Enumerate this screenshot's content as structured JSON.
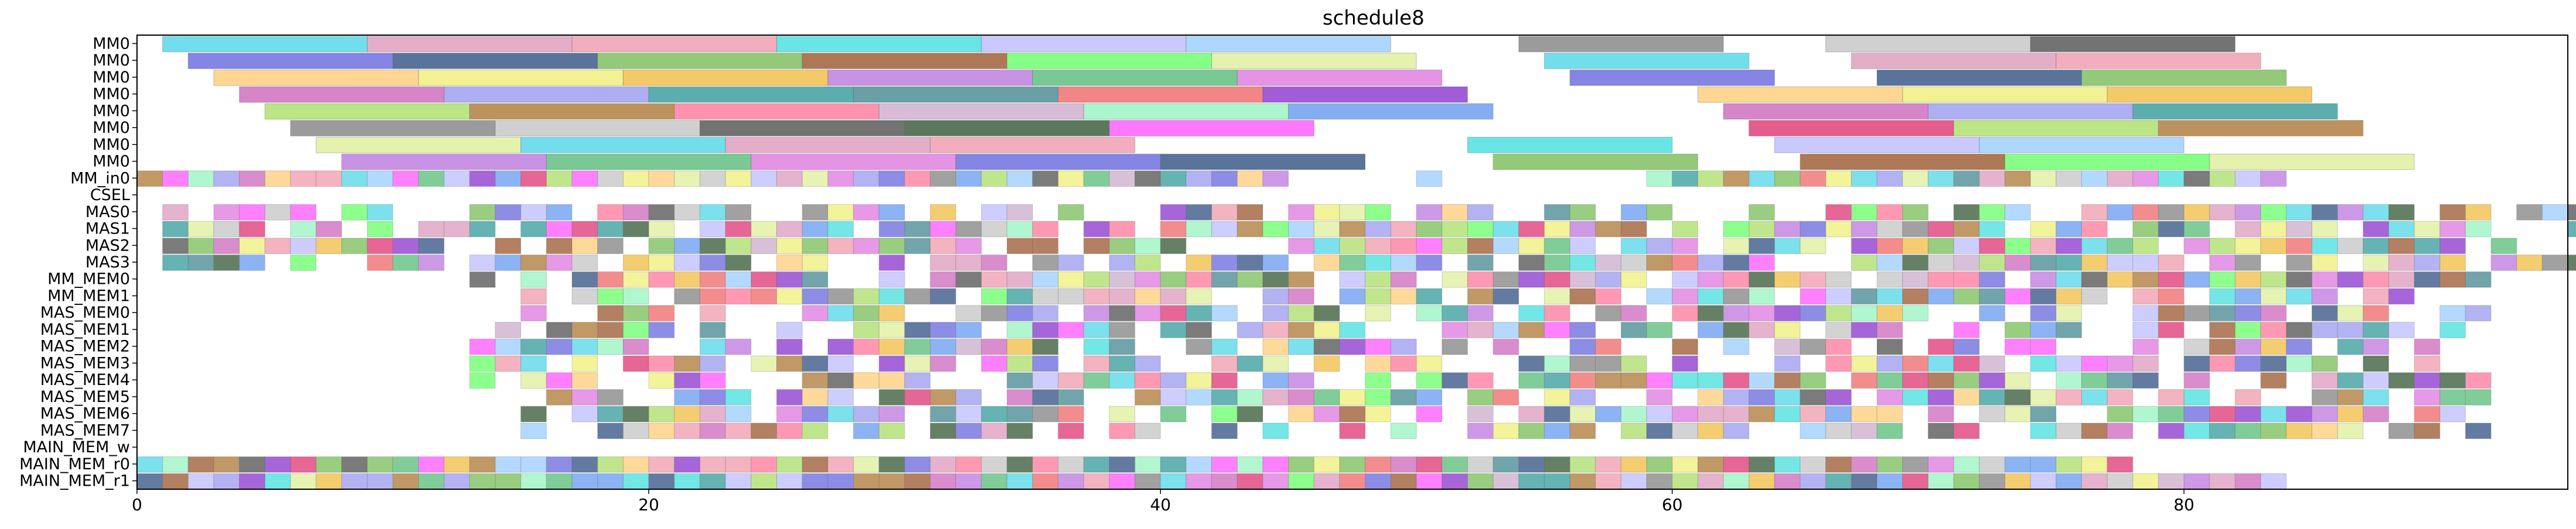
{
  "chart_data": {
    "type": "gantt",
    "title": "schedule8",
    "xlabel": "",
    "ylabel": "",
    "xlim": [
      0,
      95
    ],
    "xticks": [
      0,
      20,
      40,
      60,
      80
    ],
    "grid": false,
    "legend": "none",
    "rows": [
      "MM0",
      "MM0",
      "MM0",
      "MM0",
      "MM0",
      "MM0",
      "MM0",
      "MM0",
      "MM_in0",
      "CSEL",
      "MAS0",
      "MAS1",
      "MAS2",
      "MAS3",
      "MM_MEM0",
      "MM_MEM1",
      "MAS_MEM0",
      "MAS_MEM1",
      "MAS_MEM2",
      "MAS_MEM3",
      "MAS_MEM4",
      "MAS_MEM5",
      "MAS_MEM6",
      "MAS_MEM7",
      "MAIN_MEM_w",
      "MAIN_MEM_r0",
      "MAIN_MEM_r1"
    ],
    "palette": [
      "#5bd8e8",
      "#3d5a8a",
      "#f2c04e",
      "#4d8f96",
      "#9cf5c4",
      "#e0407a",
      "#8a8a8a",
      "#dfa0c0",
      "#80c060",
      "#c080e0",
      "#f07070",
      "#6fa0f0",
      "#b0e070",
      "#c8c8c8",
      "#f0a0b0",
      "#a0603a",
      "#60c080",
      "#9040d0",
      "#d070c0",
      "#b08040",
      "#5a5a5a",
      "#50e0e0",
      "#70ff70",
      "#e080e0",
      "#ffd080",
      "#a0a0f0",
      "#ff80a0",
      "#406040",
      "#c0c0ff",
      "#e0f0a0",
      "#7070e0",
      "#f0f080",
      "#40a0a0",
      "#d0b0d0",
      "#ff60ff",
      "#a0d0ff"
    ],
    "bars": [
      {
        "row": 0,
        "start": 1,
        "end": 9
      },
      {
        "row": 0,
        "start": 9,
        "end": 17
      },
      {
        "row": 0,
        "start": 17,
        "end": 25
      },
      {
        "row": 0,
        "start": 25,
        "end": 33
      },
      {
        "row": 0,
        "start": 33,
        "end": 41
      },
      {
        "row": 0,
        "start": 41,
        "end": 49
      },
      {
        "row": 0,
        "start": 54,
        "end": 62
      },
      {
        "row": 0,
        "start": 66,
        "end": 74
      },
      {
        "row": 0,
        "start": 74,
        "end": 82
      },
      {
        "row": 1,
        "start": 2,
        "end": 10
      },
      {
        "row": 1,
        "start": 10,
        "end": 18
      },
      {
        "row": 1,
        "start": 18,
        "end": 26
      },
      {
        "row": 1,
        "start": 26,
        "end": 34
      },
      {
        "row": 1,
        "start": 34,
        "end": 42
      },
      {
        "row": 1,
        "start": 42,
        "end": 50
      },
      {
        "row": 1,
        "start": 55,
        "end": 63
      },
      {
        "row": 1,
        "start": 67,
        "end": 75
      },
      {
        "row": 1,
        "start": 75,
        "end": 83
      },
      {
        "row": 2,
        "start": 3,
        "end": 11
      },
      {
        "row": 2,
        "start": 11,
        "end": 19
      },
      {
        "row": 2,
        "start": 19,
        "end": 27
      },
      {
        "row": 2,
        "start": 27,
        "end": 35
      },
      {
        "row": 2,
        "start": 35,
        "end": 43
      },
      {
        "row": 2,
        "start": 43,
        "end": 51
      },
      {
        "row": 2,
        "start": 56,
        "end": 64
      },
      {
        "row": 2,
        "start": 68,
        "end": 76
      },
      {
        "row": 2,
        "start": 76,
        "end": 84
      },
      {
        "row": 3,
        "start": 4,
        "end": 12
      },
      {
        "row": 3,
        "start": 12,
        "end": 20
      },
      {
        "row": 3,
        "start": 20,
        "end": 28
      },
      {
        "row": 3,
        "start": 28,
        "end": 36
      },
      {
        "row": 3,
        "start": 36,
        "end": 44
      },
      {
        "row": 3,
        "start": 44,
        "end": 52
      },
      {
        "row": 3,
        "start": 61,
        "end": 69
      },
      {
        "row": 3,
        "start": 69,
        "end": 77
      },
      {
        "row": 3,
        "start": 77,
        "end": 85
      },
      {
        "row": 4,
        "start": 5,
        "end": 13
      },
      {
        "row": 4,
        "start": 13,
        "end": 21
      },
      {
        "row": 4,
        "start": 21,
        "end": 29
      },
      {
        "row": 4,
        "start": 29,
        "end": 37
      },
      {
        "row": 4,
        "start": 37,
        "end": 45
      },
      {
        "row": 4,
        "start": 45,
        "end": 53
      },
      {
        "row": 4,
        "start": 62,
        "end": 70
      },
      {
        "row": 4,
        "start": 70,
        "end": 78
      },
      {
        "row": 4,
        "start": 78,
        "end": 86
      },
      {
        "row": 5,
        "start": 6,
        "end": 14
      },
      {
        "row": 5,
        "start": 14,
        "end": 22
      },
      {
        "row": 5,
        "start": 22,
        "end": 30
      },
      {
        "row": 5,
        "start": 30,
        "end": 38
      },
      {
        "row": 5,
        "start": 38,
        "end": 46
      },
      {
        "row": 5,
        "start": 63,
        "end": 71
      },
      {
        "row": 5,
        "start": 71,
        "end": 79
      },
      {
        "row": 5,
        "start": 79,
        "end": 87
      },
      {
        "row": 6,
        "start": 7,
        "end": 15
      },
      {
        "row": 6,
        "start": 15,
        "end": 23
      },
      {
        "row": 6,
        "start": 23,
        "end": 31
      },
      {
        "row": 6,
        "start": 31,
        "end": 39
      },
      {
        "row": 6,
        "start": 52,
        "end": 60
      },
      {
        "row": 6,
        "start": 64,
        "end": 72
      },
      {
        "row": 6,
        "start": 72,
        "end": 80
      },
      {
        "row": 7,
        "start": 8,
        "end": 16
      },
      {
        "row": 7,
        "start": 16,
        "end": 24
      },
      {
        "row": 7,
        "start": 24,
        "end": 32
      },
      {
        "row": 7,
        "start": 32,
        "end": 40
      },
      {
        "row": 7,
        "start": 40,
        "end": 48
      },
      {
        "row": 7,
        "start": 53,
        "end": 61
      },
      {
        "row": 7,
        "start": 65,
        "end": 73
      },
      {
        "row": 7,
        "start": 73,
        "end": 81
      },
      {
        "row": 7,
        "start": 81,
        "end": 89
      }
    ],
    "cell_rows": [
      {
        "row": 8,
        "spans": [
          [
            0,
            51
          ],
          [
            59,
            84
          ]
        ],
        "skip": [
          [
            45,
            50
          ]
        ]
      },
      {
        "row": 10,
        "spans": [
          [
            1,
            96
          ]
        ],
        "density": 0.7,
        "seed": 3
      },
      {
        "row": 11,
        "spans": [
          [
            1,
            96
          ]
        ],
        "density": 0.78,
        "seed": 5
      },
      {
        "row": 12,
        "spans": [
          [
            1,
            93
          ]
        ],
        "density": 0.76,
        "seed": 7
      },
      {
        "row": 13,
        "spans": [
          [
            1,
            96
          ]
        ],
        "density": 0.74,
        "seed": 11
      },
      {
        "row": 14,
        "spans": [
          [
            13,
            92
          ]
        ],
        "density": 0.86,
        "seed": 13
      },
      {
        "row": 15,
        "spans": [
          [
            13,
            89
          ]
        ],
        "density": 0.84,
        "seed": 17
      },
      {
        "row": 16,
        "spans": [
          [
            14,
            92
          ]
        ],
        "density": 0.7,
        "seed": 19
      },
      {
        "row": 17,
        "spans": [
          [
            14,
            92
          ]
        ],
        "density": 0.7,
        "seed": 23
      },
      {
        "row": 18,
        "spans": [
          [
            13,
            91
          ]
        ],
        "density": 0.74,
        "seed": 29
      },
      {
        "row": 19,
        "spans": [
          [
            13,
            91
          ]
        ],
        "density": 0.72,
        "seed": 31
      },
      {
        "row": 20,
        "spans": [
          [
            13,
            92
          ]
        ],
        "density": 0.76,
        "seed": 37
      },
      {
        "row": 21,
        "spans": [
          [
            14,
            93
          ]
        ],
        "density": 0.7,
        "seed": 41
      },
      {
        "row": 22,
        "spans": [
          [
            14,
            91
          ]
        ],
        "density": 0.72,
        "seed": 43
      },
      {
        "row": 23,
        "spans": [
          [
            15,
            92
          ]
        ],
        "density": 0.72,
        "seed": 47
      },
      {
        "row": 25,
        "spans": [
          [
            0,
            78
          ]
        ],
        "density": 1.0,
        "seed": 53
      },
      {
        "row": 26,
        "spans": [
          [
            0,
            84
          ]
        ],
        "density": 1.0,
        "seed": 59
      }
    ]
  }
}
